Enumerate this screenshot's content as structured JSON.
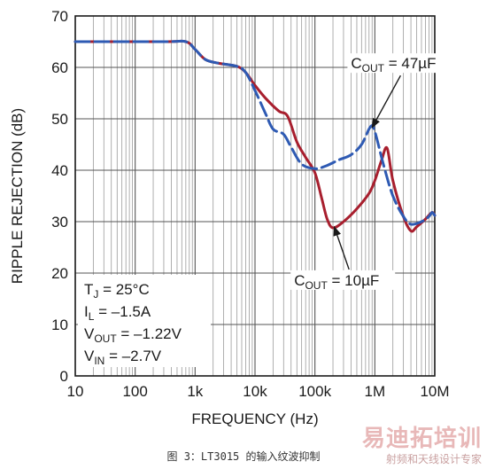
{
  "chart_data": {
    "type": "line",
    "xlabel": "FREQUENCY (Hz)",
    "ylabel": "RIPPLE REJECTION (dB)",
    "xscale": "log",
    "xlim": [
      10,
      10000000
    ],
    "ylim": [
      0,
      70
    ],
    "grid": true,
    "x_ticks": [
      10,
      100,
      1000,
      10000,
      100000,
      1000000,
      10000000
    ],
    "x_tick_labels": [
      "10",
      "100",
      "1k",
      "10k",
      "100k",
      "1M",
      "10M"
    ],
    "y_ticks": [
      0,
      10,
      20,
      30,
      40,
      50,
      60,
      70
    ],
    "y_tick_labels": [
      "0",
      "10",
      "20",
      "30",
      "40",
      "50",
      "60",
      "70"
    ],
    "series": [
      {
        "name": "COUT = 10µF",
        "color": "#a81f2e",
        "style": "solid",
        "points": [
          [
            10,
            65
          ],
          [
            300,
            65
          ],
          [
            700,
            65
          ],
          [
            1000,
            63.5
          ],
          [
            1500,
            61.5
          ],
          [
            2500,
            60.8
          ],
          [
            5000,
            60.2
          ],
          [
            7000,
            59
          ],
          [
            10000,
            56.5
          ],
          [
            15000,
            54
          ],
          [
            25000,
            51.5
          ],
          [
            35000,
            50.5
          ],
          [
            50000,
            45.5
          ],
          [
            70000,
            42.5
          ],
          [
            100000,
            39.5
          ],
          [
            130000,
            34.5
          ],
          [
            160000,
            30.5
          ],
          [
            200000,
            28.8
          ],
          [
            300000,
            30
          ],
          [
            500000,
            32.5
          ],
          [
            800000,
            35.5
          ],
          [
            1000000,
            38
          ],
          [
            1300000,
            42
          ],
          [
            1600000,
            44.3
          ],
          [
            2000000,
            38
          ],
          [
            3000000,
            31
          ],
          [
            4000000,
            28.2
          ],
          [
            5000000,
            29
          ],
          [
            7000000,
            30.5
          ],
          [
            9000000,
            31.8
          ],
          [
            10000000,
            31.2
          ]
        ]
      },
      {
        "name": "COUT = 47µF",
        "color": "#2e5ab3",
        "style": "dashed",
        "points": [
          [
            10,
            65
          ],
          [
            300,
            65
          ],
          [
            700,
            65
          ],
          [
            1000,
            63.5
          ],
          [
            1500,
            61.5
          ],
          [
            2500,
            60.8
          ],
          [
            5000,
            60.2
          ],
          [
            7000,
            59
          ],
          [
            10000,
            55.5
          ],
          [
            15000,
            51
          ],
          [
            20000,
            48
          ],
          [
            30000,
            47
          ],
          [
            40000,
            44.5
          ],
          [
            60000,
            41.2
          ],
          [
            100000,
            40.3
          ],
          [
            150000,
            40.8
          ],
          [
            250000,
            42
          ],
          [
            400000,
            43
          ],
          [
            600000,
            45
          ],
          [
            850000,
            48.5
          ],
          [
            1000000,
            47.5
          ],
          [
            1400000,
            41
          ],
          [
            2000000,
            35
          ],
          [
            3000000,
            31
          ],
          [
            4000000,
            29.5
          ],
          [
            6000000,
            30
          ],
          [
            8000000,
            31
          ],
          [
            9000000,
            31.8
          ],
          [
            10000000,
            31.2
          ]
        ]
      }
    ],
    "annotations": [
      {
        "main": "C",
        "sub": "OUT",
        "rest": " = 47µF",
        "x": 400000,
        "y": 59.8,
        "arrow_to": [
          900000,
          48.3
        ]
      },
      {
        "main": "C",
        "sub": "OUT",
        "rest": " = 10µF",
        "x": 45000,
        "y": 17.6,
        "arrow_to": [
          210000,
          29
        ]
      }
    ],
    "conditions": [
      {
        "main": "T",
        "sub": "J",
        "rest": " = 25°C"
      },
      {
        "main": "I",
        "sub": "L",
        "rest": " = –1.5A"
      },
      {
        "main": "V",
        "sub": "OUT",
        "rest": " = –1.22V"
      },
      {
        "main": "V",
        "sub": "IN",
        "rest": " = –2.7V"
      }
    ]
  },
  "caption": "图 3：LT3015 的输入纹波抑制",
  "watermark": {
    "main": "易迪拓培训",
    "sub": "射频和天线设计专家"
  }
}
